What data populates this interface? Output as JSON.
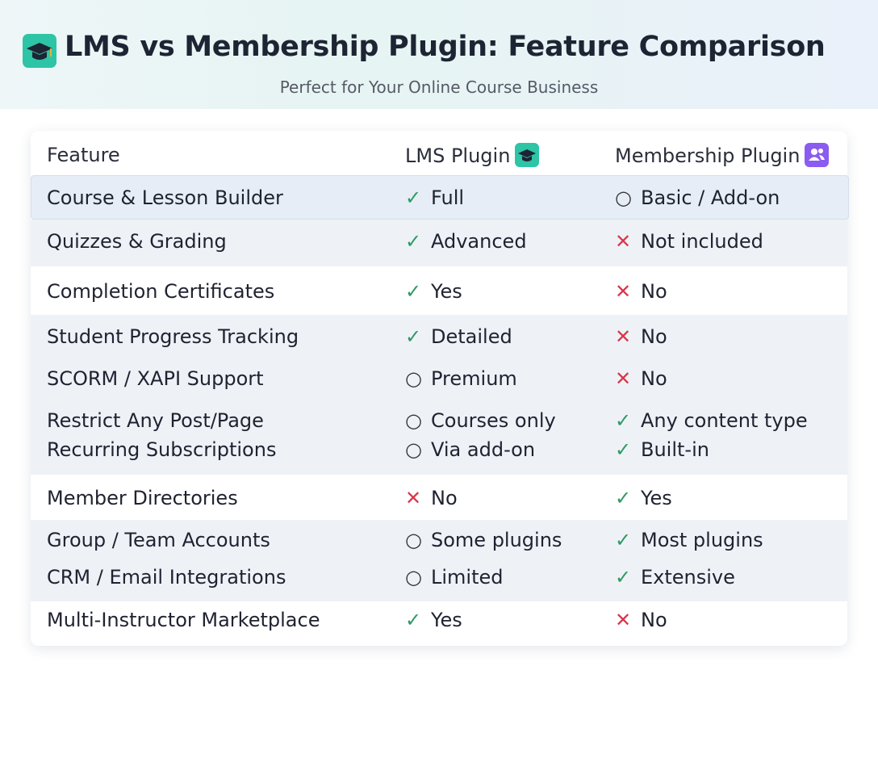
{
  "header": {
    "title": "LMS vs Membership Plugin: Feature Comparison",
    "subtitle": "Perfect for Your Online Course Business"
  },
  "table": {
    "columns": [
      "Feature",
      "LMS Plugin",
      "Membership Plugin"
    ],
    "rows": [
      {
        "feature": "Course & Lesson Builder",
        "lms": {
          "icon": "✓",
          "color": "#2f9a62",
          "text": "Full"
        },
        "membership": {
          "icon": "○",
          "color": "#333333",
          "text": "Basic / Add-on"
        }
      },
      {
        "feature": "Quizzes & Grading",
        "lms": {
          "icon": "✓",
          "color": "#2f9a62",
          "text": "Advanced"
        },
        "membership": {
          "icon": "✕",
          "color": "#d8374a",
          "text": "Not included"
        }
      },
      {
        "feature": "Completion Certificates",
        "lms": {
          "icon": "✓",
          "color": "#2f9a62",
          "text": "Yes"
        },
        "membership": {
          "icon": "✕",
          "color": "#d8374a",
          "text": "No"
        }
      },
      {
        "feature": "Student Progress Tracking",
        "lms": {
          "icon": "✓",
          "color": "#2f9a62",
          "text": "Detailed"
        },
        "membership": {
          "icon": "✕",
          "color": "#d8374a",
          "text": "No"
        }
      },
      {
        "feature": "SCORM / XAPI Support",
        "lms": {
          "icon": "○",
          "color": "#333333",
          "text": "Premium"
        },
        "membership": {
          "icon": "✕",
          "color": "#d8374a",
          "text": "No"
        }
      },
      {
        "feature": "Restrict Any Post/Page",
        "lms": {
          "icon": "○",
          "color": "#333333",
          "text": "Courses only"
        },
        "membership": {
          "icon": "✓",
          "color": "#2f9a62",
          "text": "Any content type"
        }
      },
      {
        "feature": "Recurring Subscriptions",
        "lms": {
          "icon": "○",
          "color": "#333333",
          "text": "Via add-on"
        },
        "membership": {
          "icon": "✓",
          "color": "#2f9a62",
          "text": "Built-in"
        }
      },
      {
        "feature": "Member Directories",
        "lms": {
          "icon": "✕",
          "color": "#d8374a",
          "text": "No"
        },
        "membership": {
          "icon": "✓",
          "color": "#2f9a62",
          "text": "Yes"
        }
      },
      {
        "feature": "Group / Team Accounts",
        "lms": {
          "icon": "○",
          "color": "#333333",
          "text": "Some plugins"
        },
        "membership": {
          "icon": "✓",
          "color": "#2f9a62",
          "text": "Most plugins"
        }
      },
      {
        "feature": "CRM / Email Integrations",
        "lms": {
          "icon": "○",
          "color": "#333333",
          "text": "Limited"
        },
        "membership": {
          "icon": "✓",
          "color": "#2f9a62",
          "text": "Extensive"
        }
      },
      {
        "feature": "Multi-Instructor Marketplace",
        "lms": {
          "icon": "✓",
          "color": "#2f9a62",
          "text": "Yes"
        },
        "membership": {
          "icon": "✕",
          "color": "#d8374a",
          "text": "No"
        }
      }
    ]
  }
}
